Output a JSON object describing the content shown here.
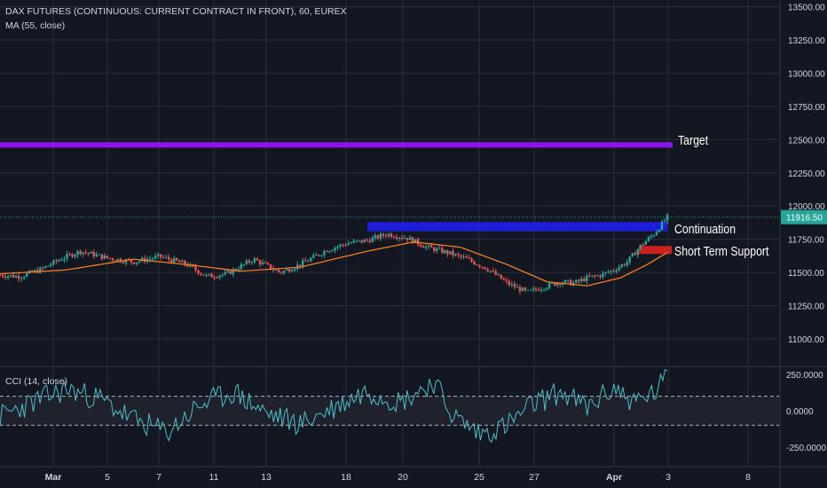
{
  "header": {
    "symbol_title": "DAX FUTURES (CONTINUOUS: CURRENT CONTRACT IN FRONT), 60, EUREX",
    "ma_label": "MA (55, close)",
    "cci_label": "CCI (14, close)"
  },
  "colors": {
    "background": "#131722",
    "grid": "#2a2e39",
    "candle_up": "#26a69a",
    "candle_down": "#ef5350",
    "ma_line": "#f57c1f",
    "cci_line": "#4dc0c8",
    "target_zone": "#8c16e8",
    "continuation_zone": "#1e1ed8",
    "support_zone": "#cc1f1f",
    "price_tag": "#26a69a"
  },
  "chart_data": {
    "type": "candlestick",
    "symbol": "DAX FUTURES (CONTINUOUS: CURRENT CONTRACT IN FRONT)",
    "interval": "60",
    "exchange": "EUREX",
    "last_price": 11916.5,
    "last_price_label": "11916.50",
    "ylim": [
      10800,
      13550
    ],
    "y_ticks": [
      11000,
      11250,
      11500,
      11750,
      12000,
      12250,
      12500,
      12750,
      13000,
      13250,
      13500
    ],
    "y_tick_labels": [
      "11000.00",
      "11250.00",
      "11500.00",
      "11750.00",
      "12000.00",
      "12250.00",
      "12500.00",
      "12750.00",
      "13000.00",
      "13250.00",
      "13500.00"
    ],
    "x_ticks": [
      "Mar",
      "5",
      "7",
      "11",
      "13",
      "18",
      "20",
      "25",
      "27",
      "Apr",
      "3",
      "8"
    ],
    "price_path": [
      [
        0,
        11480
      ],
      [
        0.03,
        11470
      ],
      [
        0.06,
        11520
      ],
      [
        0.09,
        11600
      ],
      [
        0.12,
        11660
      ],
      [
        0.16,
        11610
      ],
      [
        0.2,
        11580
      ],
      [
        0.24,
        11620
      ],
      [
        0.28,
        11560
      ],
      [
        0.31,
        11470
      ],
      [
        0.34,
        11490
      ],
      [
        0.38,
        11600
      ],
      [
        0.42,
        11500
      ],
      [
        0.45,
        11560
      ],
      [
        0.49,
        11670
      ],
      [
        0.52,
        11720
      ],
      [
        0.55,
        11740
      ],
      [
        0.58,
        11790
      ],
      [
        0.61,
        11760
      ],
      [
        0.64,
        11690
      ],
      [
        0.67,
        11650
      ],
      [
        0.7,
        11600
      ],
      [
        0.73,
        11530
      ],
      [
        0.76,
        11420
      ],
      [
        0.79,
        11350
      ],
      [
        0.82,
        11400
      ],
      [
        0.84,
        11430
      ],
      [
        0.86,
        11420
      ],
      [
        0.88,
        11460
      ],
      [
        0.9,
        11480
      ],
      [
        0.92,
        11520
      ],
      [
        0.94,
        11580
      ],
      [
        0.96,
        11700
      ],
      [
        0.98,
        11790
      ],
      [
        1.0,
        11916
      ]
    ],
    "moving_average": {
      "name": "MA (55, close)",
      "path": [
        [
          0,
          11490
        ],
        [
          0.1,
          11520
        ],
        [
          0.2,
          11600
        ],
        [
          0.28,
          11560
        ],
        [
          0.36,
          11510
        ],
        [
          0.45,
          11540
        ],
        [
          0.55,
          11660
        ],
        [
          0.62,
          11730
        ],
        [
          0.69,
          11690
        ],
        [
          0.76,
          11560
        ],
        [
          0.82,
          11430
        ],
        [
          0.88,
          11400
        ],
        [
          0.93,
          11460
        ],
        [
          0.97,
          11560
        ],
        [
          1.0,
          11650
        ]
      ]
    },
    "zones": [
      {
        "label": "Target",
        "low": 12440,
        "high": 12480
      },
      {
        "label": "Continuation",
        "low": 11810,
        "high": 11880
      },
      {
        "label": "Short Term Support",
        "low": 11640,
        "high": 11700
      }
    ],
    "cci": {
      "name": "CCI (14, close)",
      "ylim": [
        -380,
        300
      ],
      "y_ticks": [
        250,
        0,
        -250
      ],
      "y_tick_labels": [
        "250.0000",
        "0.0000",
        "-250.0000"
      ],
      "bands": [
        100,
        -100
      ],
      "path": [
        [
          0,
          -40
        ],
        [
          0.05,
          60
        ],
        [
          0.1,
          150
        ],
        [
          0.15,
          80
        ],
        [
          0.2,
          -60
        ],
        [
          0.25,
          -150
        ],
        [
          0.3,
          40
        ],
        [
          0.35,
          130
        ],
        [
          0.4,
          -20
        ],
        [
          0.45,
          -90
        ],
        [
          0.5,
          20
        ],
        [
          0.55,
          140
        ],
        [
          0.6,
          60
        ],
        [
          0.65,
          200
        ],
        [
          0.68,
          -40
        ],
        [
          0.72,
          -160
        ],
        [
          0.76,
          -100
        ],
        [
          0.8,
          50
        ],
        [
          0.84,
          130
        ],
        [
          0.88,
          20
        ],
        [
          0.92,
          160
        ],
        [
          0.95,
          60
        ],
        [
          0.98,
          120
        ],
        [
          1.0,
          230
        ]
      ]
    }
  }
}
